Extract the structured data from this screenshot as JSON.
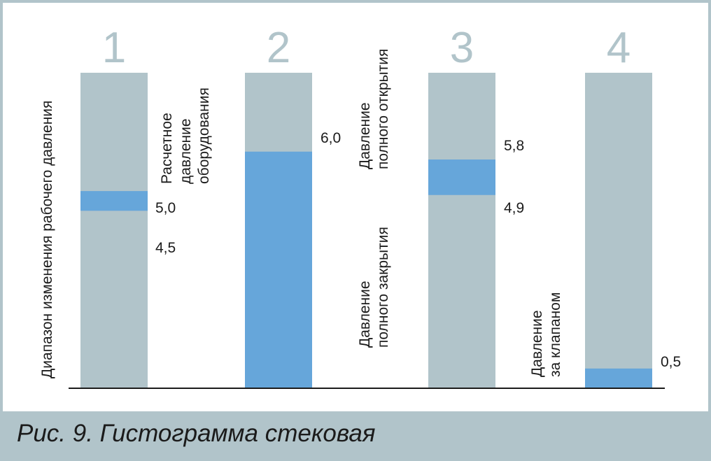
{
  "caption": "Рис. 9. Гистограмма стековая",
  "colors": {
    "bar": "#b1c4ca",
    "band": "#66a6da",
    "axis": "#1b1b1b",
    "text": "#1b1b1b",
    "frame": "#b1c4ca"
  },
  "chart_data": {
    "type": "bar",
    "stacked": true,
    "ylim": [
      0,
      8
    ],
    "categories": [
      "1",
      "2",
      "3",
      "4"
    ],
    "bars": [
      {
        "number": "1",
        "band": [
          4.5,
          5.0
        ],
        "value_labels": [
          "5,0",
          "4,5"
        ]
      },
      {
        "number": "2",
        "band": [
          0,
          6.0
        ],
        "value_labels": [
          "6,0"
        ]
      },
      {
        "number": "3",
        "band": [
          4.9,
          5.8
        ],
        "value_labels": [
          "5,8",
          "4,9"
        ]
      },
      {
        "number": "4",
        "band": [
          0,
          0.5
        ],
        "value_labels": [
          "0,5"
        ]
      }
    ],
    "annotations": {
      "range_label": "Диапазон изменения рабочего давления",
      "design_pressure": [
        "Расчетное",
        "давление",
        "оборудования"
      ],
      "full_open": [
        "Давление",
        "полного открытия"
      ],
      "full_close": [
        "Давление",
        "полного закрытия"
      ],
      "after_valve": [
        "Давление",
        "за клапаном"
      ]
    }
  }
}
